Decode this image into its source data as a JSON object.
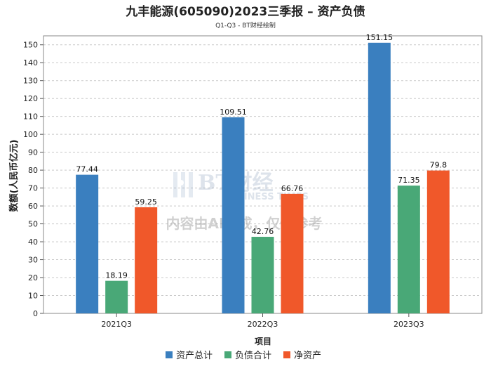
{
  "chart_data": {
    "type": "bar",
    "title": "九丰能源(605090)2023三季报 – 资产负债",
    "subtitle": "Q1-Q3 - BT财经绘制",
    "xlabel": "项目",
    "ylabel": "数额(人民币亿元)",
    "ylim": [
      0,
      155
    ],
    "yticks": [
      0,
      10,
      20,
      30,
      40,
      50,
      60,
      70,
      80,
      90,
      100,
      110,
      120,
      130,
      140,
      150
    ],
    "grid": true,
    "legend_position": "bottom-center",
    "categories": [
      "2021Q3",
      "2022Q3",
      "2023Q3"
    ],
    "series": [
      {
        "name": "资产总计",
        "color": "#3a7fbf",
        "values": [
          77.44,
          109.51,
          151.15
        ],
        "labels": [
          "77.44",
          "109.51",
          "151.15"
        ]
      },
      {
        "name": "负债合计",
        "color": "#49a877",
        "values": [
          18.19,
          42.76,
          71.35
        ],
        "labels": [
          "18.19",
          "42.76",
          "71.35"
        ]
      },
      {
        "name": "净资产",
        "color": "#f0582a",
        "values": [
          59.25,
          66.76,
          79.8
        ],
        "labels": [
          "59.25",
          "66.76",
          "79.8"
        ]
      }
    ]
  },
  "watermark": {
    "brand": "BT财经",
    "brand_en": "BUSINESS TIMES",
    "notice": "内容由AI生成，仅供参考"
  }
}
